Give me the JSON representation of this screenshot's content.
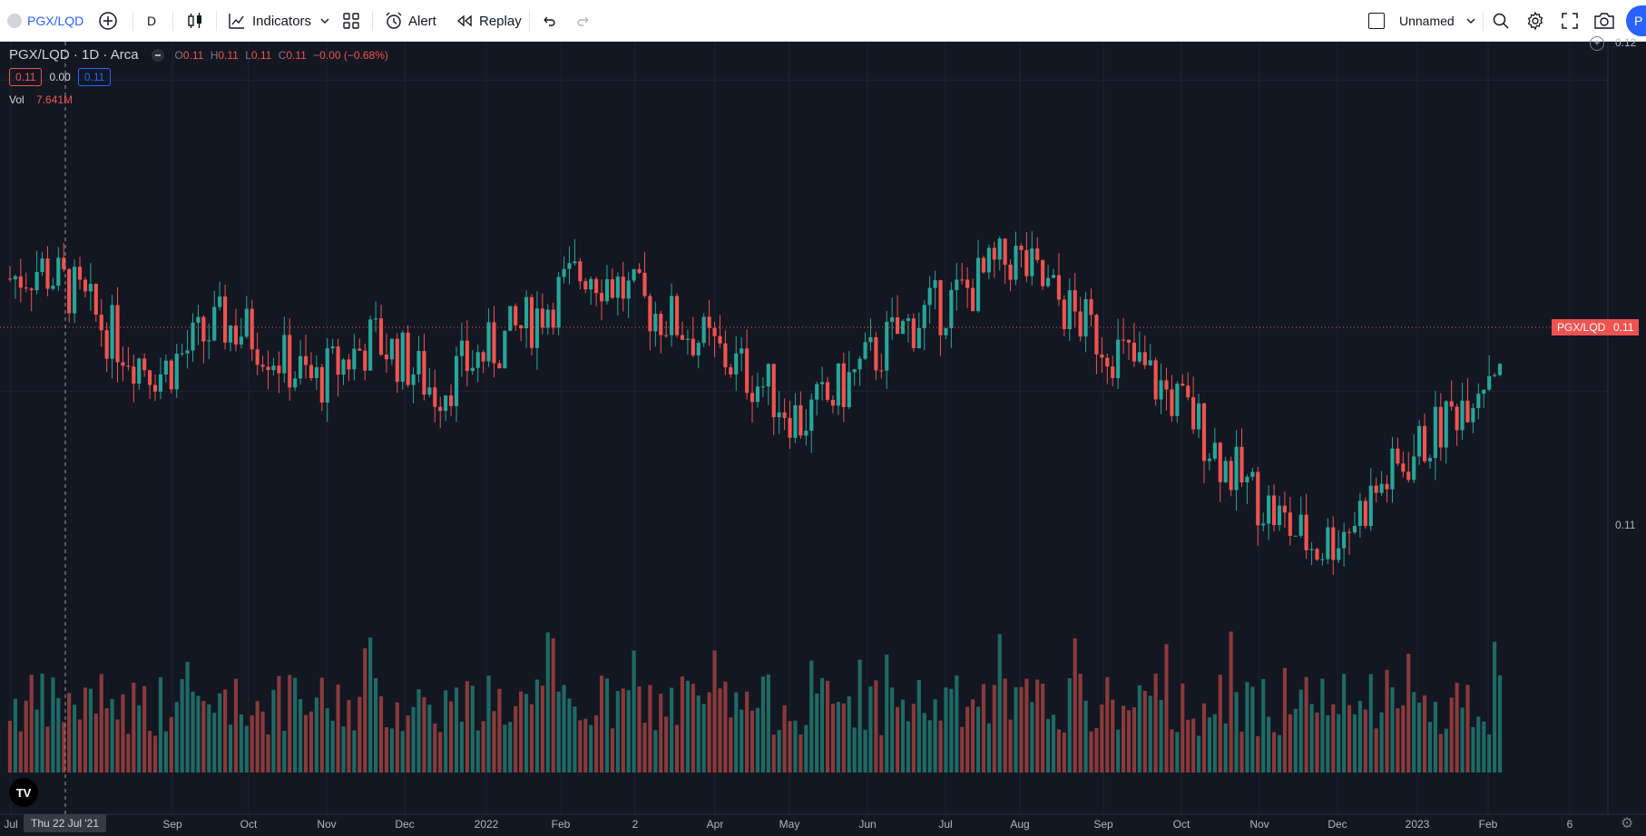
{
  "toolbar": {
    "symbol": "PGX/LQD",
    "interval": "D",
    "indicators_label": "Indicators",
    "alert_label": "Alert",
    "replay_label": "Replay",
    "layout_name": "Unnamed",
    "publish_label": "P"
  },
  "legend": {
    "title": "PGX/LQD · 1D · Arca",
    "o_label": "O",
    "o_value": "0.11",
    "h_label": "H",
    "h_value": "0.11",
    "l_label": "L",
    "l_value": "0.11",
    "c_label": "C",
    "c_value": "0.11",
    "change": "−0.00 (−0.68%)",
    "bid": "0.11",
    "spread": "0.00",
    "ask": "0.11",
    "vol_label": "Vol",
    "vol_value": "7.641M"
  },
  "price_axis": {
    "top_label": "0.12",
    "mid_label": "0.11",
    "symbol_tag": "PGX/LQD",
    "last_price_tag": "0.11"
  },
  "time_axis": {
    "labels": [
      "Jul",
      "Sep",
      "Oct",
      "Nov",
      "Dec",
      "2022",
      "Feb",
      "2",
      "Apr",
      "May",
      "Jun",
      "Jul",
      "Aug",
      "Sep",
      "Oct",
      "Nov",
      "Dec",
      "2023",
      "Feb",
      "6"
    ],
    "crosshair_label": "Thu 22 Jul '21"
  },
  "colors": {
    "background": "#131722",
    "up": "#26a69a",
    "down": "#ef5350",
    "vol_up": "#1e6a64",
    "vol_down": "#8a3a3b",
    "accent": "#2962ff"
  },
  "chart_data": {
    "type": "candlestick",
    "title": "PGX/LQD · 1D · Arca",
    "series": [
      {
        "name": "PGX/LQD",
        "values": []
      }
    ],
    "closes_approx": [
      0.113,
      0.1133,
      0.1127,
      0.1118,
      0.111,
      0.1105,
      0.1112,
      0.1118,
      0.1115,
      0.1108,
      0.1102,
      0.1108,
      0.1114,
      0.1108,
      0.11,
      0.1107,
      0.1112,
      0.1118,
      0.1126,
      0.1133,
      0.1128,
      0.1122,
      0.1118,
      0.1112,
      0.1106,
      0.11,
      0.1092,
      0.1098,
      0.1106,
      0.1114,
      0.112,
      0.1124,
      0.113,
      0.1136,
      0.1128,
      0.112,
      0.1113,
      0.1107,
      0.11,
      0.1092,
      0.108,
      0.1072,
      0.1064,
      0.1058,
      0.1064,
      0.1074,
      0.1082,
      0.109,
      0.11,
      0.111
    ],
    "price_range": [
      0.1035,
      0.1185
    ],
    "x_labels": [
      "Jul",
      "Sep",
      "Oct",
      "Nov",
      "Dec",
      "2022",
      "Feb",
      "2",
      "Apr",
      "May",
      "Jun",
      "Jul",
      "Aug",
      "Sep",
      "Oct",
      "Nov",
      "Dec",
      "2023",
      "Feb",
      "6"
    ],
    "y_labels": [
      "0.12",
      "0.11"
    ],
    "volume_label": "Vol 7.641M",
    "grid": true
  }
}
